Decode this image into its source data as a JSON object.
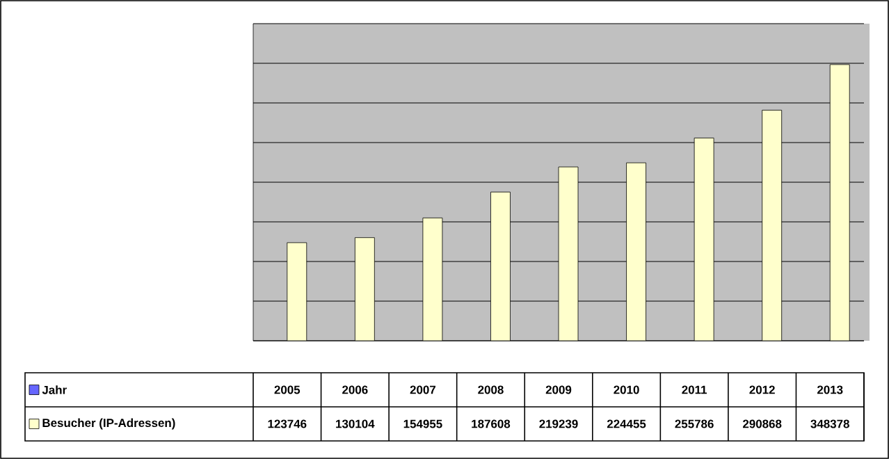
{
  "chart_data": {
    "type": "bar",
    "categories": [
      "2005",
      "2006",
      "2007",
      "2008",
      "2009",
      "2010",
      "2011",
      "2012",
      "2013"
    ],
    "series": [
      {
        "name": "Besucher (IP-Adressen)",
        "color": "#ffffcc",
        "values": [
          123746,
          130104,
          154955,
          187608,
          219239,
          224455,
          255786,
          290868,
          348378
        ]
      }
    ],
    "ylim": [
      0,
      400000
    ],
    "yticks": [
      {
        "value": 0,
        "label": null
      },
      {
        "value": 50000,
        "label": null
      },
      {
        "value": 100000,
        "label": null
      },
      {
        "value": 150000,
        "label": null
      },
      {
        "value": 200000,
        "label": null
      },
      {
        "value": 250000,
        "label": null
      },
      {
        "value": 300000,
        "label": null
      },
      {
        "value": 350000,
        "label": null
      },
      {
        "value": 400000,
        "label": null
      }
    ],
    "annotations": [
      "Jahr"
    ],
    "grid": "y",
    "legend": "bottom",
    "data_labels": true,
    "tick_labels": "x"
  }
}
